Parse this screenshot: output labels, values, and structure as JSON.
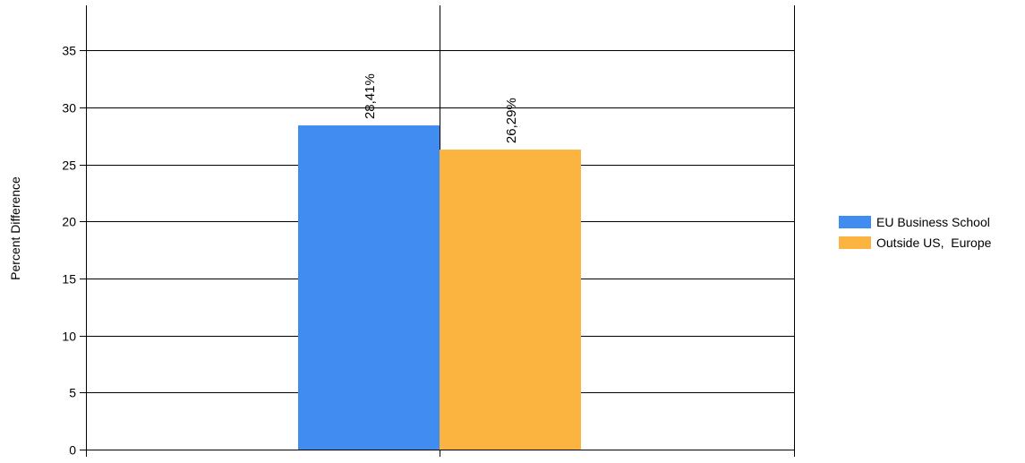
{
  "chart_data": {
    "type": "bar",
    "title": "",
    "xlabel": "",
    "ylabel": "Percent Difference",
    "ylim": [
      0,
      38
    ],
    "yticks": [
      0,
      5,
      10,
      15,
      20,
      25,
      30,
      35
    ],
    "grid": true,
    "legend_position": "right",
    "series": [
      {
        "name": "EU Business School",
        "value": 28.41,
        "label": "28,41%",
        "color": "#418CF0"
      },
      {
        "name": "Outside US,  Europe",
        "value": 26.29,
        "label": "26,29%",
        "color": "#FCB441"
      }
    ]
  }
}
